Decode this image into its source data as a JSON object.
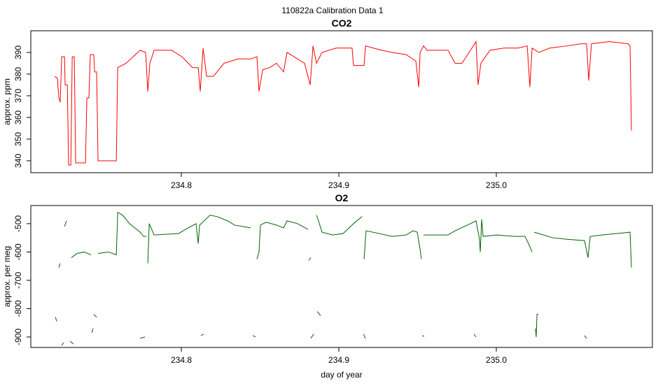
{
  "title": "110822a   Calibration Data 1",
  "chart_data": [
    {
      "type": "line",
      "title": "CO2",
      "ylabel": "approx. ppm",
      "color": "#ff0000",
      "xlim": [
        234.7044,
        235.0991
      ],
      "ylim": [
        334.5,
        400
      ],
      "xticks": [
        234.8,
        234.9,
        {
          "value": 235,
          "label": "235.0"
        }
      ],
      "yticks": [
        340,
        350,
        360,
        370,
        380,
        390
      ],
      "x": [
        234.7196,
        234.7213,
        234.7222,
        234.7231,
        234.724,
        234.7258,
        234.7262,
        234.7276,
        234.7284,
        234.7298,
        234.7307,
        234.732,
        234.7329,
        234.7391,
        234.74,
        234.7413,
        234.7422,
        234.7444,
        234.7449,
        234.7462,
        234.7471,
        234.7587,
        234.7596,
        234.7649,
        234.7738,
        234.7773,
        234.7787,
        234.78,
        234.7827,
        234.7938,
        234.8004,
        234.8071,
        234.8107,
        234.812,
        234.8138,
        234.816,
        234.8204,
        234.8271,
        234.836,
        234.844,
        234.848,
        234.8493,
        234.8516,
        234.856,
        234.8604,
        234.8649,
        234.8671,
        234.8738,
        234.8782,
        234.8818,
        234.8836,
        234.8858,
        234.8893,
        234.8982,
        234.9084,
        234.9093,
        234.916,
        234.9169,
        234.9271,
        234.9338,
        234.9427,
        234.9489,
        234.9507,
        234.9516,
        234.9538,
        234.956,
        234.9693,
        234.9738,
        234.9782,
        234.9827,
        234.9871,
        234.9884,
        234.9902,
        234.996,
        235.0049,
        235.0138,
        235.0196,
        235.0213,
        235.0227,
        235.0271,
        235.0338,
        235.0449,
        235.0538,
        235.0573,
        235.0587,
        235.0604,
        235.0716,
        235.0836,
        235.0849,
        235.0858
      ],
      "values": [
        379,
        378,
        369,
        367,
        388,
        388,
        375,
        375,
        338,
        338,
        388,
        388,
        339,
        339,
        369,
        369,
        389,
        389,
        381,
        381,
        340,
        340,
        383,
        385,
        391,
        390,
        372,
        385,
        391,
        391,
        388,
        383,
        383,
        372,
        392,
        379,
        379,
        385,
        387,
        387,
        388,
        372,
        382,
        383,
        385,
        381,
        390,
        387,
        385,
        375,
        393,
        385,
        390,
        392,
        392,
        384,
        384,
        393,
        391,
        390,
        389,
        386,
        374,
        390,
        393,
        391,
        391,
        385,
        385,
        390,
        395,
        375,
        385,
        391,
        392,
        392,
        393,
        374,
        392,
        390,
        392,
        393,
        394,
        394,
        377,
        394,
        395,
        394,
        393,
        354
      ]
    },
    {
      "type": "line",
      "title": "O2",
      "ylabel": "approx. per meg",
      "xlabel": "day of year",
      "color": "#006400",
      "xlim": [
        234.7044,
        235.0991
      ],
      "ylim": [
        -937,
        -436
      ],
      "xticks": [
        234.8,
        234.9,
        {
          "value": 235,
          "label": "235.0"
        }
      ],
      "yticks": [
        -900,
        -800,
        -700,
        -600,
        -500
      ],
      "x": [
        234.72,
        234.7209,
        null,
        234.7222,
        234.7231,
        null,
        234.724,
        234.7253,
        null,
        234.7258,
        234.7271,
        null,
        234.7293,
        234.7316,
        null,
        234.7302,
        234.7338,
        234.7382,
        234.7427,
        null,
        234.7431,
        234.744,
        null,
        234.7444,
        234.7462,
        null,
        234.7471,
        234.7538,
        234.7587,
        234.7596,
        234.7627,
        234.7671,
        234.7738,
        234.776,
        234.7778,
        null,
        234.7738,
        234.7769,
        null,
        234.7787,
        234.7796,
        234.7827,
        234.7982,
        234.8027,
        234.8093,
        234.8107,
        234.8116,
        234.8182,
        234.8227,
        234.8293,
        234.8338,
        234.844,
        null,
        234.8124,
        234.8142,
        null,
        234.8453,
        234.8471,
        null,
        234.848,
        234.8493,
        234.8502,
        234.8538,
        234.8604,
        234.8649,
        234.8671,
        234.8738,
        234.8804,
        null,
        234.8809,
        234.8822,
        null,
        234.8822,
        234.884,
        null,
        234.8858,
        234.8871,
        234.8893,
        234.896,
        234.9027,
        234.9093,
        234.9147,
        null,
        234.8862,
        234.8884,
        null,
        234.9156,
        234.9169,
        null,
        234.916,
        234.9173,
        234.9338,
        234.9427,
        234.9471,
        234.9498,
        234.9516,
        234.9524,
        null,
        234.9529,
        234.9542,
        null,
        234.9538,
        234.9693,
        234.9738,
        234.9836,
        234.9871,
        234.9893,
        234.9898,
        234.9907,
        234.9916,
        235.0004,
        235.0116,
        235.0182,
        235.0204,
        235.0227,
        null,
        234.9858,
        234.9871,
        null,
        235.0249,
        235.0253,
        235.0258,
        235.0267,
        null,
        235.024,
        235.036,
        235.0449,
        235.056,
        235.0582,
        235.0596,
        235.0671,
        235.076,
        235.0849,
        235.0858,
        null,
        235.056,
        235.0573
      ],
      "values": [
        -830,
        -845,
        null,
        -655,
        -640,
        null,
        -930,
        -920,
        null,
        -510,
        -490,
        null,
        -915,
        -925,
        null,
        -620,
        -605,
        -600,
        -610,
        null,
        -885,
        -870,
        null,
        -820,
        -830,
        null,
        -605,
        -600,
        -610,
        -460,
        -470,
        -500,
        -530,
        -545,
        -545,
        null,
        -905,
        -900,
        null,
        -640,
        -500,
        -540,
        -535,
        -520,
        -500,
        -570,
        -505,
        -470,
        -475,
        -490,
        -505,
        -515,
        null,
        -895,
        -890,
        null,
        -895,
        -900,
        null,
        -625,
        -600,
        -505,
        -495,
        -505,
        -515,
        -490,
        -500,
        -520,
        null,
        -630,
        -620,
        null,
        -905,
        -890,
        null,
        -470,
        -490,
        -530,
        -540,
        -535,
        -500,
        -475,
        null,
        -810,
        -825,
        null,
        -890,
        -905,
        null,
        -625,
        -525,
        -545,
        -540,
        -525,
        -530,
        -590,
        -625,
        null,
        -895,
        -898,
        null,
        -540,
        -540,
        -525,
        -500,
        -490,
        -555,
        -600,
        -485,
        -545,
        -540,
        -545,
        -545,
        -570,
        -600,
        null,
        -890,
        -900,
        null,
        -870,
        -900,
        -820,
        -820,
        null,
        -530,
        -550,
        -555,
        -560,
        -620,
        -545,
        -540,
        -535,
        -530,
        -655,
        null,
        -895,
        -905
      ]
    }
  ]
}
